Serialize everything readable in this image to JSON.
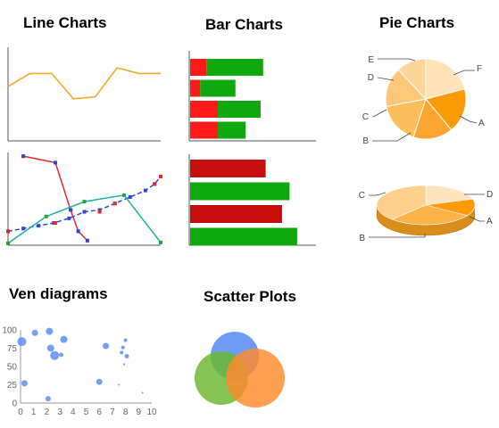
{
  "titles": {
    "line": "Line Charts",
    "bar": "Bar Charts",
    "pie": "Pie Charts",
    "ven": "Ven diagrams",
    "scatter": "Scatter Plots"
  },
  "chart_data": [
    {
      "id": "line1",
      "type": "line",
      "title": "",
      "x": [
        0,
        1,
        2,
        3,
        4,
        5,
        6,
        7
      ],
      "series": [
        {
          "values": [
            58,
            72,
            72,
            45,
            47,
            78,
            72,
            72
          ],
          "color": "#f5a623"
        }
      ],
      "ylim": [
        0,
        100
      ],
      "grid": false
    },
    {
      "id": "line2",
      "type": "line",
      "title": "",
      "xlim": [
        0,
        10
      ],
      "ylim": [
        0,
        100
      ],
      "series": [
        {
          "color": "#e32929",
          "style": "solid",
          "marker": "square",
          "points": [
            [
              1,
              96
            ],
            [
              3.1,
              89
            ],
            [
              4.1,
              38
            ],
            [
              4.6,
              15
            ],
            [
              5.2,
              5
            ]
          ]
        },
        {
          "color": "#2a49d6",
          "style": "dashed",
          "marker": "square",
          "points": [
            [
              0,
              15
            ],
            [
              1,
              18
            ],
            [
              2,
              21
            ],
            [
              3,
              24
            ],
            [
              4,
              29
            ],
            [
              5,
              36
            ],
            [
              6,
              38
            ],
            [
              7,
              45
            ],
            [
              8,
              52
            ],
            [
              9,
              59
            ],
            [
              9.6,
              66
            ],
            [
              10,
              74
            ]
          ]
        },
        {
          "color": "#18b0a6",
          "style": "solid",
          "marker": "none",
          "points": [
            [
              0,
              2
            ],
            [
              2.5,
              31
            ],
            [
              5,
              47
            ],
            [
              7.6,
              54
            ],
            [
              10,
              3
            ]
          ]
        },
        {
          "color": "#e32929",
          "style": "none",
          "marker": "square",
          "points": [
            [
              0,
              15
            ],
            [
              3.1,
              24
            ],
            [
              6,
              36
            ],
            [
              7,
              45
            ],
            [
              9.6,
              66
            ],
            [
              10,
              74
            ]
          ]
        },
        {
          "color": "#22a82c",
          "style": "none",
          "marker": "square",
          "points": [
            [
              0,
              2
            ],
            [
              2.5,
              31
            ],
            [
              5,
              47
            ],
            [
              7.6,
              54
            ],
            [
              10,
              3
            ]
          ]
        },
        {
          "color": "#2a49d6",
          "style": "none",
          "marker": "square",
          "points": [
            [
              1,
              96
            ],
            [
              3.1,
              89
            ],
            [
              4.1,
              38
            ],
            [
              4.6,
              15
            ],
            [
              5.2,
              5
            ]
          ]
        }
      ]
    },
    {
      "id": "bar1",
      "type": "bar",
      "orientation": "horizontal",
      "stacked": true,
      "categories": [
        "1",
        "2",
        "3",
        "4"
      ],
      "xlim": [
        0,
        100
      ],
      "series": [
        {
          "color": "#ff1a1a",
          "values": [
            13,
            8,
            22,
            22
          ]
        },
        {
          "color": "#0fa90f",
          "values": [
            45,
            28,
            34,
            22
          ]
        }
      ]
    },
    {
      "id": "bar2",
      "type": "bar",
      "orientation": "horizontal",
      "stacked": false,
      "categories": [
        "1",
        "2",
        "3",
        "4"
      ],
      "xlim": [
        0,
        100
      ],
      "values": [
        60,
        79,
        73,
        85
      ],
      "colors": [
        "#c80f0f",
        "#0fa90f",
        "#c80f0f",
        "#0fa90f"
      ]
    },
    {
      "id": "pie1",
      "type": "pie",
      "labels": [
        "F",
        "A",
        "B",
        "C",
        "D",
        "E"
      ],
      "values": [
        21,
        18,
        16,
        17,
        16,
        12
      ],
      "colors": [
        "#fde3b7",
        "#fb9b08",
        "#fca631",
        "#fdbe5b",
        "#fdc87a",
        "#fdd596"
      ]
    },
    {
      "id": "pie2",
      "type": "pie",
      "style": "3d",
      "labels": [
        "D",
        "A",
        "B",
        "C"
      ],
      "values": [
        20,
        14,
        28,
        38
      ],
      "colors": [
        "#fde5bd",
        "#fb9b08",
        "#fcb347",
        "#fdd08b"
      ]
    },
    {
      "id": "venn",
      "type": "venn",
      "sets": [
        {
          "name": "",
          "color": "#4e86f2"
        },
        {
          "name": "",
          "color": "#6ab72c"
        },
        {
          "name": "",
          "color": "#ff8a2b"
        }
      ]
    },
    {
      "id": "scatter",
      "type": "scatter",
      "xlim": [
        0,
        10
      ],
      "ylim": [
        0,
        100
      ],
      "xticks": [
        0,
        1,
        2,
        3,
        4,
        5,
        6,
        7,
        8,
        9,
        10
      ],
      "yticks": [
        0,
        25,
        50,
        75,
        100
      ],
      "points": [
        {
          "x": 0.1,
          "y": 84,
          "r": 5
        },
        {
          "x": 1.1,
          "y": 96,
          "r": 3.5
        },
        {
          "x": 2.2,
          "y": 98,
          "r": 4
        },
        {
          "x": 2.3,
          "y": 75,
          "r": 4
        },
        {
          "x": 2.6,
          "y": 65,
          "r": 5
        },
        {
          "x": 3.1,
          "y": 66,
          "r": 2.5
        },
        {
          "x": 3.3,
          "y": 87,
          "r": 4
        },
        {
          "x": 0.3,
          "y": 27,
          "r": 3.5
        },
        {
          "x": 2.1,
          "y": 6,
          "r": 3
        },
        {
          "x": 6.0,
          "y": 29,
          "r": 3.5
        },
        {
          "x": 6.5,
          "y": 78,
          "r": 3.5
        },
        {
          "x": 7.7,
          "y": 69,
          "r": 2
        },
        {
          "x": 7.8,
          "y": 76,
          "r": 2
        },
        {
          "x": 7.9,
          "y": 53,
          "r": 1.2
        },
        {
          "x": 8.0,
          "y": 86,
          "r": 2
        },
        {
          "x": 8.1,
          "y": 64,
          "r": 2.5
        },
        {
          "x": 7.5,
          "y": 25,
          "r": 1
        },
        {
          "x": 9.3,
          "y": 14,
          "r": 1
        }
      ],
      "color": "#5b8ff0"
    }
  ]
}
